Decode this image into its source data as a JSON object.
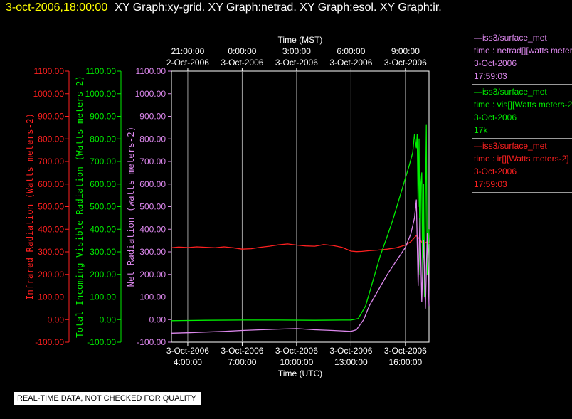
{
  "title": {
    "time": "3-oct-2006,18:00:00",
    "graphs": "XY Graph:xy-grid.  XY Graph:netrad.  XY Graph:esol.  XY Graph:ir."
  },
  "legend": [
    {
      "source": "—iss3/surface_met",
      "variable": "time : netrad[][watts meters-2]",
      "date": "3-Oct-2006",
      "time": "17:59:03",
      "color": "#dd88ee"
    },
    {
      "source": "—iss3/surface_met",
      "variable": "time : vis[][Watts meters-2]",
      "date": "3-Oct-2006",
      "time": "17k",
      "color": "#00ee00"
    },
    {
      "source": "—iss3/surface_met",
      "variable": "time : ir[][Watts meters-2]",
      "date": "3-Oct-2006",
      "time": "17:59:03",
      "color": "#ff2020"
    }
  ],
  "quality_note": "REAL-TIME DATA, NOT CHECKED FOR QUALITY",
  "chart_data": {
    "type": "line",
    "top_axis": {
      "title": "Time (MST)",
      "ticks": [
        {
          "hour": 21,
          "time": "21:00:00",
          "date": "2-Oct-2006"
        },
        {
          "hour": 24,
          "time": "0:00:00",
          "date": "3-Oct-2006"
        },
        {
          "hour": 27,
          "time": "3:00:00",
          "date": "3-Oct-2006"
        },
        {
          "hour": 30,
          "time": "6:00:00",
          "date": "3-Oct-2006"
        },
        {
          "hour": 33,
          "time": "9:00:00",
          "date": "3-Oct-2006"
        }
      ]
    },
    "bottom_axis": {
      "title": "Time (UTC)",
      "ticks": [
        {
          "hour": 4,
          "date": "3-Oct-2006",
          "time": "4:00:00"
        },
        {
          "hour": 7,
          "date": "3-Oct-2006",
          "time": "7:00:00"
        },
        {
          "hour": 10,
          "date": "3-Oct-2006",
          "time": "10:00:00"
        },
        {
          "hour": 13,
          "date": "3-Oct-2006",
          "time": "13:00:00"
        },
        {
          "hour": 16,
          "date": "3-Oct-2006",
          "time": "16:00:00"
        }
      ],
      "xlim_utc_hours": [
        3.1,
        17.3
      ]
    },
    "y_axes": [
      {
        "label": "Infrared Radiation (Watts meters-2)",
        "color": "#ff2020"
      },
      {
        "label": "Total Incoming Visible Radiation (Watts meters-2)",
        "color": "#00ee00"
      },
      {
        "label": "Net Radiation (watts meters-2)",
        "color": "#dd88ee"
      }
    ],
    "ylim": [
      -100,
      1100
    ],
    "yticks": [
      "-100.00",
      "0.00",
      "100.00",
      "200.00",
      "300.00",
      "400.00",
      "500.00",
      "600.00",
      "700.00",
      "800.00",
      "900.00",
      "1000.00",
      "1100.00"
    ],
    "grid": "vertical",
    "series": [
      {
        "name": "time : ir[][Watts meters-2]",
        "color": "#ff2020",
        "x": [
          3.1,
          3.5,
          4.0,
          4.5,
          5.0,
          5.5,
          6.0,
          6.5,
          7.0,
          7.5,
          8.0,
          8.5,
          9.0,
          9.5,
          10.0,
          10.5,
          11.0,
          11.5,
          12.0,
          12.5,
          13.0,
          13.3,
          13.6,
          14.0,
          14.5,
          15.0,
          15.5,
          16.0,
          16.3,
          16.6,
          16.8,
          17.0,
          17.1,
          17.2,
          17.3
        ],
        "y": [
          318,
          321,
          319,
          322,
          320,
          318,
          322,
          318,
          312,
          314,
          320,
          325,
          331,
          335,
          330,
          326,
          325,
          332,
          328,
          320,
          303,
          301,
          302,
          305,
          308,
          312,
          318,
          330,
          345,
          372,
          355,
          330,
          340,
          345,
          335
        ]
      },
      {
        "name": "time : vis[][Watts meters-2]",
        "color": "#00ee00",
        "x": [
          3.1,
          5.0,
          7.0,
          9.0,
          11.0,
          12.5,
          13.0,
          13.4,
          13.8,
          14.2,
          14.6,
          15.0,
          15.3,
          15.6,
          15.9,
          16.2,
          16.4,
          16.5,
          16.6,
          16.65,
          16.7,
          16.75,
          16.8,
          16.85,
          16.9,
          16.95,
          17.0,
          17.05,
          17.1,
          17.15,
          17.2,
          17.3
        ],
        "y": [
          -5,
          -3,
          -2,
          -2,
          -3,
          -2,
          -2,
          5,
          60,
          170,
          280,
          370,
          440,
          520,
          600,
          680,
          740,
          820,
          760,
          820,
          500,
          800,
          200,
          600,
          650,
          150,
          600,
          100,
          500,
          860,
          200,
          400
        ]
      },
      {
        "name": "time : netrad[][watts meters-2]",
        "color": "#dd88ee",
        "x": [
          3.1,
          4.0,
          5.0,
          6.0,
          7.0,
          8.0,
          9.0,
          10.0,
          11.0,
          12.0,
          12.5,
          13.0,
          13.3,
          13.7,
          14.0,
          14.5,
          15.0,
          15.5,
          16.0,
          16.3,
          16.5,
          16.6,
          16.7,
          16.8,
          16.9,
          17.0,
          17.1,
          17.2,
          17.3
        ],
        "y": [
          -60,
          -58,
          -55,
          -52,
          -48,
          -45,
          -42,
          -40,
          -45,
          -48,
          -50,
          -52,
          -45,
          0,
          60,
          130,
          200,
          260,
          320,
          380,
          450,
          530,
          150,
          450,
          80,
          350,
          50,
          380,
          60
        ]
      }
    ]
  }
}
